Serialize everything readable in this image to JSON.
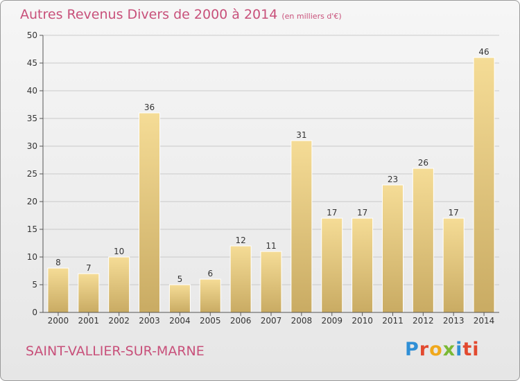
{
  "header": {
    "title": "Autres Revenus Divers de 2000 à 2014",
    "unit": "(en milliers d'€)"
  },
  "footer": {
    "town": "SAINT-VALLIER-SUR-MARNE",
    "logo_letters": [
      "P",
      "r",
      "o",
      "x",
      "i",
      "ti"
    ]
  },
  "colors": {
    "title": "#c8507a",
    "bar_light": "#f5dc96",
    "bar_dark": "#c9ab63",
    "axis": "#555555",
    "grid": "#c9c9c9"
  },
  "chart_data": {
    "type": "bar",
    "title": "Autres Revenus Divers de 2000 à 2014",
    "xlabel": "",
    "ylabel": "",
    "categories": [
      "2000",
      "2001",
      "2002",
      "2003",
      "2004",
      "2005",
      "2006",
      "2007",
      "2008",
      "2009",
      "2010",
      "2011",
      "2012",
      "2013",
      "2014"
    ],
    "values": [
      8,
      7,
      10,
      36,
      5,
      6,
      12,
      11,
      31,
      17,
      17,
      23,
      26,
      17,
      46
    ],
    "ylim": [
      0,
      50
    ],
    "yticks": [
      0,
      5,
      10,
      15,
      20,
      25,
      30,
      35,
      40,
      45,
      50
    ],
    "grid": true,
    "data_labels": true
  }
}
